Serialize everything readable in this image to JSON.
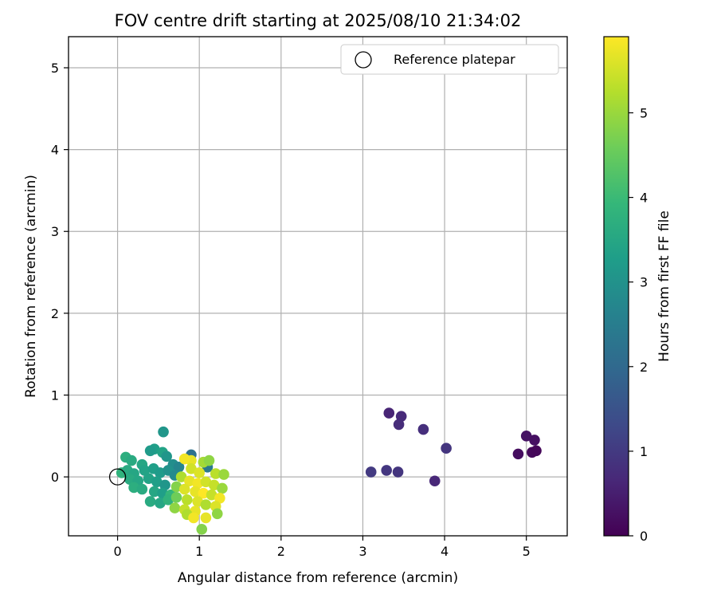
{
  "chart_data": {
    "type": "scatter",
    "title": "FOV centre drift starting at 2025/08/10 21:34:02",
    "xlabel": "Angular distance from reference (arcmin)",
    "ylabel": "Rotation from reference (arcmin)",
    "xlim": [
      -0.6,
      5.5
    ],
    "ylim": [
      -0.72,
      5.38
    ],
    "xticks": [
      0,
      1,
      2,
      3,
      4,
      5
    ],
    "yticks": [
      0,
      1,
      2,
      3,
      4,
      5
    ],
    "grid": true,
    "legend": {
      "position": "top-right",
      "entries": [
        "Reference platepar"
      ]
    },
    "reference_point": {
      "x": 0,
      "y": 0,
      "marker": "open-circle"
    },
    "colorbar": {
      "label": "Hours from first FF file",
      "colormap": "viridis",
      "range": [
        0,
        5.9
      ],
      "ticks": [
        0,
        1,
        2,
        3,
        4,
        5
      ]
    },
    "series": [
      {
        "color_by": "hours",
        "points": [
          {
            "x": 3.32,
            "y": 0.78,
            "h": 0.6
          },
          {
            "x": 3.47,
            "y": 0.74,
            "h": 0.7
          },
          {
            "x": 3.44,
            "y": 0.64,
            "h": 0.75
          },
          {
            "x": 3.74,
            "y": 0.58,
            "h": 0.8
          },
          {
            "x": 4.02,
            "y": 0.35,
            "h": 0.9
          },
          {
            "x": 3.1,
            "y": 0.06,
            "h": 1.0
          },
          {
            "x": 3.29,
            "y": 0.08,
            "h": 0.95
          },
          {
            "x": 3.43,
            "y": 0.06,
            "h": 0.9
          },
          {
            "x": 3.88,
            "y": -0.05,
            "h": 0.65
          },
          {
            "x": 5.0,
            "y": 0.5,
            "h": 0.3
          },
          {
            "x": 5.1,
            "y": 0.45,
            "h": 0.25
          },
          {
            "x": 4.9,
            "y": 0.28,
            "h": 0.2
          },
          {
            "x": 5.07,
            "y": 0.3,
            "h": 0.12
          },
          {
            "x": 5.12,
            "y": 0.32,
            "h": 0.1
          },
          {
            "x": 0.56,
            "y": 0.55,
            "h": 3.1
          },
          {
            "x": 0.9,
            "y": 0.27,
            "h": 2.2
          },
          {
            "x": 1.1,
            "y": 0.12,
            "h": 2.4
          },
          {
            "x": 0.45,
            "y": 0.34,
            "h": 3.3
          },
          {
            "x": 0.4,
            "y": 0.32,
            "h": 3.2
          },
          {
            "x": 0.55,
            "y": 0.3,
            "h": 3.4
          },
          {
            "x": 0.6,
            "y": 0.25,
            "h": 3.1
          },
          {
            "x": 0.1,
            "y": 0.24,
            "h": 3.7
          },
          {
            "x": 0.17,
            "y": 0.2,
            "h": 3.6
          },
          {
            "x": 0.3,
            "y": 0.15,
            "h": 3.5
          },
          {
            "x": 0.68,
            "y": 0.15,
            "h": 2.9
          },
          {
            "x": 0.75,
            "y": 0.12,
            "h": 2.7
          },
          {
            "x": 0.05,
            "y": 0.05,
            "h": 3.8
          },
          {
            "x": 0.12,
            "y": 0.08,
            "h": 3.6
          },
          {
            "x": 0.2,
            "y": 0.04,
            "h": 3.5
          },
          {
            "x": 0.33,
            "y": 0.08,
            "h": 3.4
          },
          {
            "x": 0.44,
            "y": 0.1,
            "h": 3.3
          },
          {
            "x": 0.52,
            "y": 0.05,
            "h": 3.2
          },
          {
            "x": 0.62,
            "y": 0.08,
            "h": 3.0
          },
          {
            "x": 0.7,
            "y": 0.02,
            "h": 2.8
          },
          {
            "x": 0.15,
            "y": -0.03,
            "h": 3.6
          },
          {
            "x": 0.25,
            "y": -0.05,
            "h": 3.5
          },
          {
            "x": 0.38,
            "y": -0.02,
            "h": 3.4
          },
          {
            "x": 0.48,
            "y": -0.06,
            "h": 3.3
          },
          {
            "x": 0.58,
            "y": -0.1,
            "h": 3.1
          },
          {
            "x": 0.2,
            "y": -0.13,
            "h": 3.7
          },
          {
            "x": 0.3,
            "y": -0.15,
            "h": 3.6
          },
          {
            "x": 0.45,
            "y": -0.18,
            "h": 3.5
          },
          {
            "x": 0.55,
            "y": -0.2,
            "h": 3.3
          },
          {
            "x": 0.65,
            "y": -0.22,
            "h": 3.9
          },
          {
            "x": 0.4,
            "y": -0.3,
            "h": 3.6
          },
          {
            "x": 0.52,
            "y": -0.32,
            "h": 3.5
          },
          {
            "x": 0.62,
            "y": -0.28,
            "h": 3.8
          },
          {
            "x": 0.9,
            "y": 0.2,
            "h": 5.7
          },
          {
            "x": 0.82,
            "y": 0.22,
            "h": 5.8
          },
          {
            "x": 1.05,
            "y": 0.18,
            "h": 5.1
          },
          {
            "x": 1.12,
            "y": 0.2,
            "h": 4.9
          },
          {
            "x": 0.9,
            "y": 0.1,
            "h": 5.5
          },
          {
            "x": 1.0,
            "y": 0.05,
            "h": 5.6
          },
          {
            "x": 1.2,
            "y": 0.04,
            "h": 5.3
          },
          {
            "x": 1.3,
            "y": 0.03,
            "h": 5.0
          },
          {
            "x": 0.78,
            "y": 0.0,
            "h": 5.2
          },
          {
            "x": 0.88,
            "y": -0.05,
            "h": 5.7
          },
          {
            "x": 0.98,
            "y": -0.08,
            "h": 5.8
          },
          {
            "x": 1.08,
            "y": -0.06,
            "h": 5.5
          },
          {
            "x": 1.18,
            "y": -0.1,
            "h": 5.4
          },
          {
            "x": 1.28,
            "y": -0.14,
            "h": 5.0
          },
          {
            "x": 0.72,
            "y": -0.12,
            "h": 4.8
          },
          {
            "x": 0.82,
            "y": -0.15,
            "h": 5.6
          },
          {
            "x": 0.95,
            "y": -0.18,
            "h": 5.7
          },
          {
            "x": 1.05,
            "y": -0.2,
            "h": 5.9
          },
          {
            "x": 1.15,
            "y": -0.22,
            "h": 5.4
          },
          {
            "x": 1.25,
            "y": -0.26,
            "h": 5.8
          },
          {
            "x": 0.72,
            "y": -0.25,
            "h": 4.6
          },
          {
            "x": 0.85,
            "y": -0.28,
            "h": 5.3
          },
          {
            "x": 0.98,
            "y": -0.3,
            "h": 5.6
          },
          {
            "x": 1.08,
            "y": -0.34,
            "h": 5.2
          },
          {
            "x": 1.2,
            "y": -0.36,
            "h": 5.6
          },
          {
            "x": 0.7,
            "y": -0.38,
            "h": 4.9
          },
          {
            "x": 0.82,
            "y": -0.4,
            "h": 5.4
          },
          {
            "x": 0.95,
            "y": -0.42,
            "h": 5.7
          },
          {
            "x": 1.22,
            "y": -0.45,
            "h": 4.9
          },
          {
            "x": 0.85,
            "y": -0.46,
            "h": 5.2
          },
          {
            "x": 0.93,
            "y": -0.5,
            "h": 5.8
          },
          {
            "x": 1.08,
            "y": -0.5,
            "h": 5.7
          },
          {
            "x": 1.03,
            "y": -0.64,
            "h": 4.8
          }
        ]
      }
    ]
  }
}
